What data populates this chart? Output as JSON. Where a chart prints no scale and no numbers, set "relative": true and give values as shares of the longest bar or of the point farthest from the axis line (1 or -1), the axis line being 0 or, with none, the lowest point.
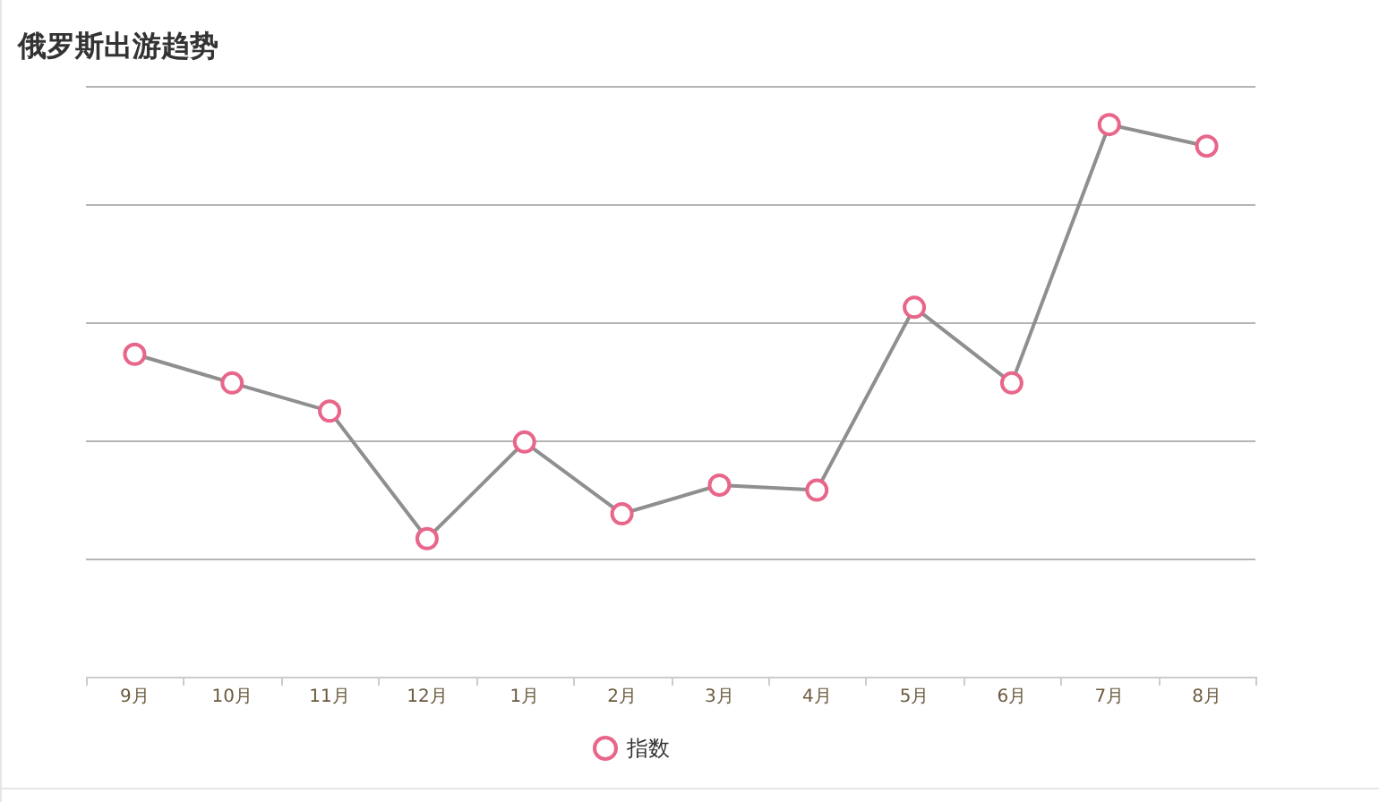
{
  "chart_data": {
    "type": "line",
    "title": "俄罗斯出游趋势",
    "relative": true,
    "grid": "y",
    "legend": "bottom",
    "marker": "circle",
    "categories": [
      "9月",
      "10月",
      "11月",
      "12月",
      "1月",
      "2月",
      "3月",
      "4月",
      "5月",
      "6月",
      "7月",
      "8月"
    ],
    "series": [
      {
        "name": "指数",
        "color": "#e8668a",
        "values": [
          0.584,
          0.532,
          0.481,
          0.25,
          0.425,
          0.295,
          0.347,
          0.338,
          0.669,
          0.532,
          1,
          0.961
        ]
      }
    ]
  }
}
